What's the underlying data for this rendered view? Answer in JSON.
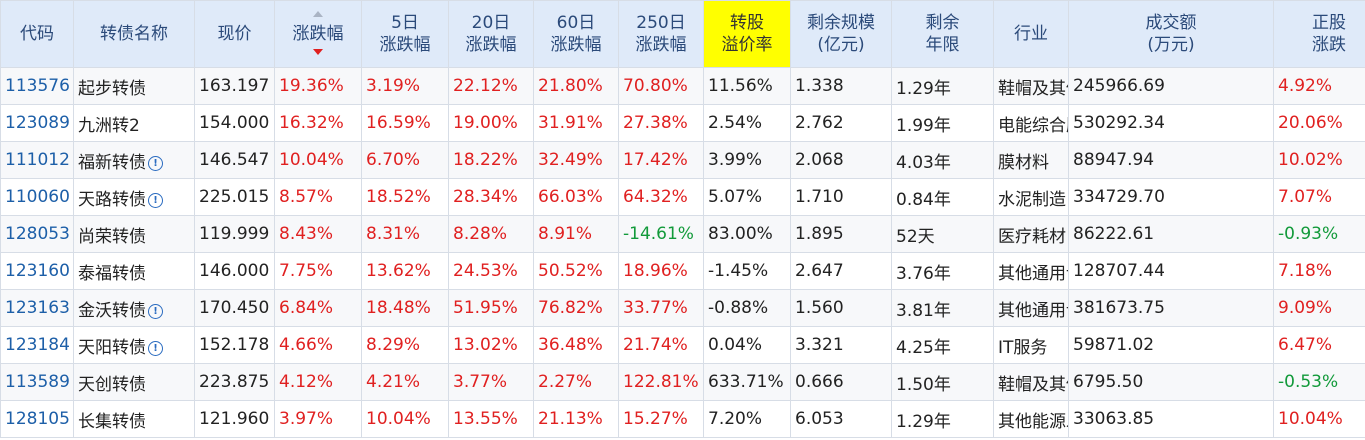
{
  "headers": {
    "code": "代码",
    "name": "转债名称",
    "price": "现价",
    "change": "涨跌幅",
    "d5_l1": "5日",
    "d5_l2": "涨跌幅",
    "d20_l1": "20日",
    "d20_l2": "涨跌幅",
    "d60_l1": "60日",
    "d60_l2": "涨跌幅",
    "d250_l1": "250日",
    "d250_l2": "涨跌幅",
    "premium_l1": "转股",
    "premium_l2": "溢价率",
    "scale_l1": "剩余规模",
    "scale_l2": "(亿元)",
    "term_l1": "剩余",
    "term_l2": "年限",
    "industry": "行业",
    "volume_l1": "成交额",
    "volume_l2": "(万元)",
    "stock_l1": "正股",
    "stock_l2": "涨跌"
  },
  "colors": {
    "header_bg": "#dfeaf9",
    "highlight": "#ffff00",
    "up": "#e02020",
    "down": "#129a3a",
    "link": "#1d5fa8"
  },
  "rows": [
    {
      "code": "113576",
      "name": "起步转债",
      "icon": "",
      "price": "163.197",
      "change": "19.36%",
      "d5": "3.19%",
      "d20": "22.12%",
      "d60": "21.80%",
      "d250": "70.80%",
      "premium": "11.56%",
      "scale": "1.338",
      "term": "1.29年",
      "industry": "鞋帽及其他",
      "volume": "245966.69",
      "stock": "4.92%"
    },
    {
      "code": "123089",
      "name": "九洲转2",
      "icon": "",
      "price": "154.000",
      "change": "16.32%",
      "d5": "16.59%",
      "d20": "19.00%",
      "d60": "31.91%",
      "d250": "27.38%",
      "premium": "2.54%",
      "scale": "2.762",
      "term": "1.99年",
      "industry": "电能综合服务",
      "volume": "530292.34",
      "stock": "20.06%"
    },
    {
      "code": "111012",
      "name": "福新转债",
      "icon": "!",
      "price": "146.547",
      "change": "10.04%",
      "d5": "6.70%",
      "d20": "18.22%",
      "d60": "32.49%",
      "d250": "17.42%",
      "premium": "3.99%",
      "scale": "2.068",
      "term": "4.03年",
      "industry": "膜材料",
      "volume": "88947.94",
      "stock": "10.02%"
    },
    {
      "code": "110060",
      "name": "天路转债",
      "icon": "!",
      "price": "225.015",
      "change": "8.57%",
      "d5": "18.52%",
      "d20": "28.34%",
      "d60": "66.03%",
      "d250": "64.32%",
      "premium": "5.07%",
      "scale": "1.710",
      "term": "0.84年",
      "industry": "水泥制造",
      "volume": "334729.70",
      "stock": "7.07%"
    },
    {
      "code": "128053",
      "name": "尚荣转债",
      "icon": "",
      "price": "119.999",
      "change": "8.43%",
      "d5": "8.31%",
      "d20": "8.28%",
      "d60": "8.91%",
      "d250": "-14.61%",
      "premium": "83.00%",
      "scale": "1.895",
      "term": "52天",
      "industry": "医疗耗材",
      "volume": "86222.61",
      "stock": "-0.93%"
    },
    {
      "code": "123160",
      "name": "泰福转债",
      "icon": "",
      "price": "146.000",
      "change": "7.75%",
      "d5": "13.62%",
      "d20": "24.53%",
      "d60": "50.52%",
      "d250": "18.96%",
      "premium": "-1.45%",
      "scale": "2.647",
      "term": "3.76年",
      "industry": "其他通用设备",
      "volume": "128707.44",
      "stock": "7.18%"
    },
    {
      "code": "123163",
      "name": "金沃转债",
      "icon": "!",
      "price": "170.450",
      "change": "6.84%",
      "d5": "18.48%",
      "d20": "51.95%",
      "d60": "76.82%",
      "d250": "33.77%",
      "premium": "-0.88%",
      "scale": "1.560",
      "term": "3.81年",
      "industry": "其他通用设备",
      "volume": "381673.75",
      "stock": "9.09%"
    },
    {
      "code": "123184",
      "name": "天阳转债",
      "icon": "!",
      "price": "152.178",
      "change": "4.66%",
      "d5": "8.29%",
      "d20": "13.02%",
      "d60": "36.48%",
      "d250": "21.74%",
      "premium": "0.04%",
      "scale": "3.321",
      "term": "4.25年",
      "industry": "IT服务",
      "volume": "59871.02",
      "stock": "6.47%"
    },
    {
      "code": "113589",
      "name": "天创转债",
      "icon": "",
      "price": "223.875",
      "change": "4.12%",
      "d5": "4.21%",
      "d20": "3.77%",
      "d60": "2.27%",
      "d250": "122.81%",
      "premium": "633.71%",
      "scale": "0.666",
      "term": "1.50年",
      "industry": "鞋帽及其他",
      "volume": "6795.50",
      "stock": "-0.53%"
    },
    {
      "code": "128105",
      "name": "长集转债",
      "icon": "",
      "price": "121.960",
      "change": "3.97%",
      "d5": "10.04%",
      "d20": "13.55%",
      "d60": "21.13%",
      "d250": "15.27%",
      "premium": "7.20%",
      "scale": "6.053",
      "term": "1.29年",
      "industry": "其他能源发电",
      "volume": "33063.85",
      "stock": "10.04%"
    }
  ],
  "icon_styles": [
    "blue",
    "grey",
    "",
    "",
    "",
    "",
    "blue",
    "blue",
    "",
    ""
  ]
}
